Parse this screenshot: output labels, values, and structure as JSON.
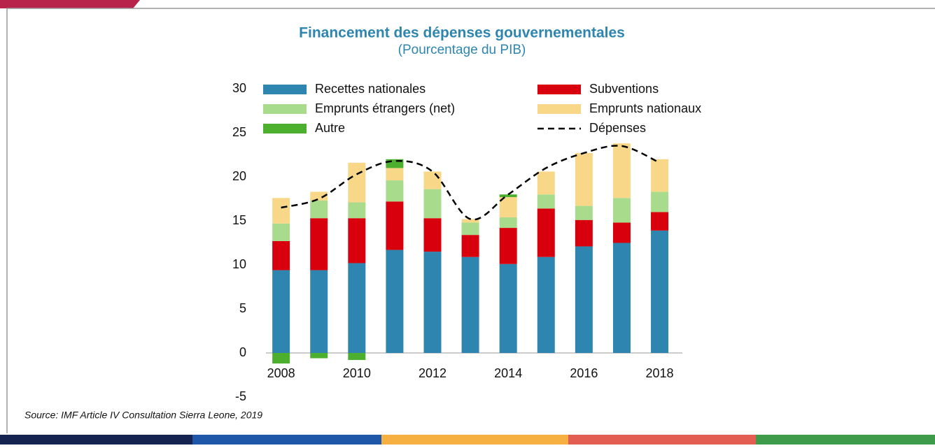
{
  "chart_data": {
    "type": "bar",
    "title": "Financement des dépenses gouvernementales",
    "subtitle": "(Pourcentage du PIB)",
    "source": "Source: IMF Article IV Consultation Sierra Leone, 2019",
    "categories": [
      "2008",
      null,
      "2010",
      null,
      "2012",
      null,
      "2014",
      null,
      "2016",
      null,
      "2018"
    ],
    "stacked": true,
    "series": [
      {
        "name": "Recettes nationales",
        "color": "#2e86b0",
        "values": [
          9.4,
          9.4,
          10.2,
          11.7,
          11.5,
          10.9,
          10.1,
          10.9,
          12.1,
          12.5,
          13.9
        ]
      },
      {
        "name": "Subventions",
        "color": "#d9000d",
        "values": [
          3.3,
          5.9,
          5.1,
          5.5,
          3.8,
          2.5,
          4.1,
          5.5,
          3.0,
          2.3,
          2.1
        ]
      },
      {
        "name": "Emprunts étrangers (net)",
        "color": "#a8dc8c",
        "values": [
          2.0,
          2.0,
          1.8,
          2.4,
          3.3,
          1.4,
          1.2,
          1.6,
          1.6,
          2.8,
          2.3
        ]
      },
      {
        "name": "Emprunts nationaux",
        "color": "#f8d888",
        "values": [
          2.9,
          1.0,
          4.5,
          1.4,
          2.0,
          0.4,
          2.3,
          2.6,
          6.0,
          6.2,
          3.7
        ]
      },
      {
        "name": "Autre",
        "color": "#4caf2e",
        "values": [
          -1.2,
          -0.6,
          -0.8,
          1.0,
          0,
          0,
          0.3,
          0,
          0,
          0,
          0
        ]
      },
      {
        "name": "Dépenses",
        "type": "line",
        "color": "#000000",
        "dashed": true,
        "values": [
          16.5,
          17.5,
          20.3,
          21.8,
          20.6,
          15.2,
          18.0,
          21.0,
          22.7,
          23.5,
          21.6
        ]
      }
    ],
    "ylim": [
      -5,
      30
    ],
    "yticks": [
      -5,
      0,
      5,
      10,
      15,
      20,
      25,
      30
    ],
    "grid": false
  }
}
